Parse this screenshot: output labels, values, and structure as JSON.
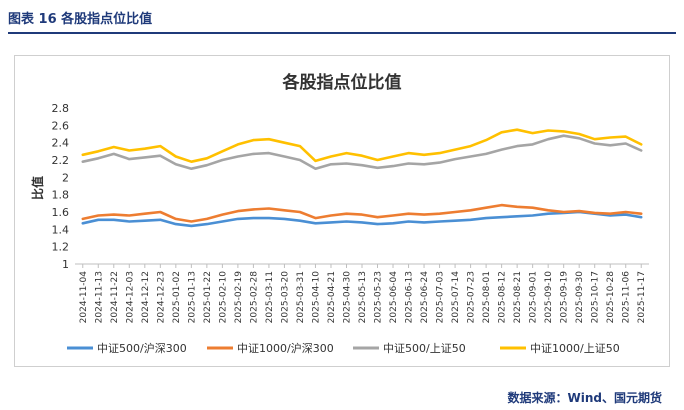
{
  "caption": "图表 16  各股指点位比值",
  "source": "数据来源：Wind、国元期货",
  "chart_data": {
    "type": "line",
    "title": "各股指点位比值",
    "ylabel": "比值",
    "xlabel": "",
    "ylim": [
      1,
      2.8
    ],
    "yticks": [
      1,
      1.2,
      1.4,
      1.6,
      1.8,
      2,
      2.2,
      2.4,
      2.6,
      2.8
    ],
    "grid": false,
    "legend_position": "bottom",
    "categories": [
      "2024-11-04",
      "2024-11-13",
      "2024-11-22",
      "2024-12-03",
      "2024-12-12",
      "2024-12-23",
      "2025-01-02",
      "2025-01-13",
      "2025-01-22",
      "2025-02-10",
      "2025-02-19",
      "2025-02-28",
      "2025-03-11",
      "2025-03-20",
      "2025-03-31",
      "2025-04-10",
      "2025-04-21",
      "2025-04-30",
      "2025-05-13",
      "2025-05-23",
      "2025-06-04",
      "2025-06-13",
      "2025-06-24",
      "2025-07-03",
      "2025-07-14",
      "2025-07-23",
      "2025-08-01",
      "2025-08-12",
      "2025-08-21",
      "2025-09-01",
      "2025-09-10",
      "2025-09-19",
      "2025-09-30",
      "2025-10-17",
      "2025-10-28",
      "2025-11-06",
      "2025-11-17"
    ],
    "series": [
      {
        "name": "中证500/沪深300",
        "color": "#4a8fd4",
        "values": [
          1.47,
          1.51,
          1.51,
          1.49,
          1.5,
          1.51,
          1.46,
          1.44,
          1.46,
          1.49,
          1.52,
          1.53,
          1.53,
          1.52,
          1.5,
          1.47,
          1.48,
          1.49,
          1.48,
          1.46,
          1.47,
          1.49,
          1.48,
          1.49,
          1.5,
          1.51,
          1.53,
          1.54,
          1.55,
          1.56,
          1.58,
          1.59,
          1.6,
          1.58,
          1.56,
          1.57,
          1.54
        ]
      },
      {
        "name": "中证1000/沪深300",
        "color": "#ed7d31",
        "values": [
          1.52,
          1.56,
          1.57,
          1.56,
          1.58,
          1.6,
          1.52,
          1.49,
          1.52,
          1.57,
          1.61,
          1.63,
          1.64,
          1.62,
          1.6,
          1.53,
          1.56,
          1.58,
          1.57,
          1.54,
          1.56,
          1.58,
          1.57,
          1.58,
          1.6,
          1.62,
          1.65,
          1.68,
          1.66,
          1.65,
          1.62,
          1.6,
          1.61,
          1.59,
          1.58,
          1.6,
          1.58
        ]
      },
      {
        "name": "中证500/上证50",
        "color": "#a5a5a5",
        "values": [
          2.18,
          2.22,
          2.27,
          2.21,
          2.23,
          2.25,
          2.15,
          2.1,
          2.14,
          2.2,
          2.24,
          2.27,
          2.28,
          2.24,
          2.2,
          2.1,
          2.15,
          2.16,
          2.14,
          2.11,
          2.13,
          2.16,
          2.15,
          2.17,
          2.21,
          2.24,
          2.27,
          2.32,
          2.36,
          2.38,
          2.44,
          2.48,
          2.45,
          2.39,
          2.37,
          2.39,
          2.31
        ]
      },
      {
        "name": "中证1000/上证50",
        "color": "#ffc000",
        "values": [
          2.26,
          2.3,
          2.35,
          2.31,
          2.33,
          2.36,
          2.24,
          2.18,
          2.22,
          2.3,
          2.38,
          2.43,
          2.44,
          2.4,
          2.36,
          2.19,
          2.24,
          2.28,
          2.25,
          2.2,
          2.24,
          2.28,
          2.26,
          2.28,
          2.32,
          2.36,
          2.43,
          2.52,
          2.55,
          2.51,
          2.54,
          2.53,
          2.5,
          2.44,
          2.46,
          2.47,
          2.38
        ]
      }
    ]
  }
}
